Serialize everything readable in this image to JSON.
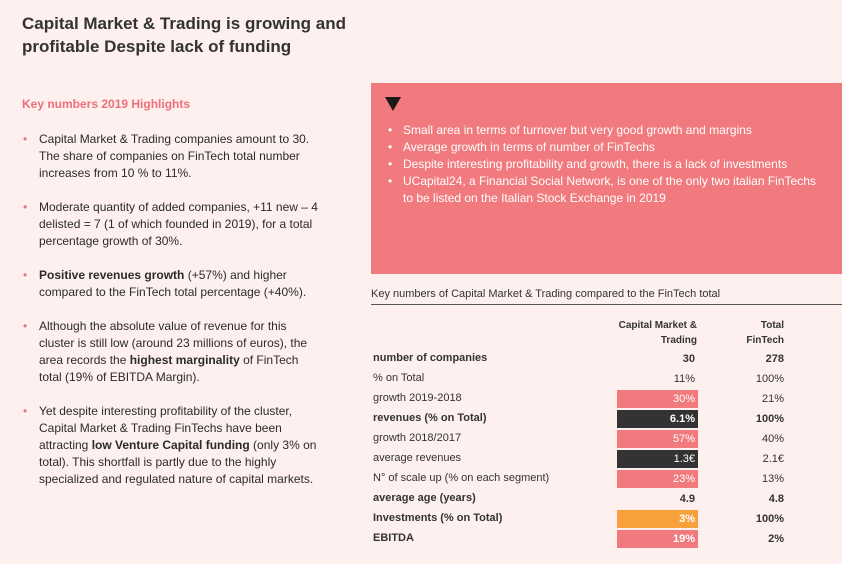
{
  "title": "Capital Market & Trading is growing and profitable Despite lack of funding",
  "highlights": {
    "heading": "Key numbers 2019 Highlights",
    "items": [
      {
        "parts": [
          {
            "t": "Capital Market & Trading companies amount to 30. The share of companies on FinTech total number increases from 10 % to 11%.",
            "b": false
          }
        ]
      },
      {
        "parts": [
          {
            "t": "Moderate quantity of added companies, +11 new – 4 delisted = 7 (1 of which founded in 2019), for a total percentage growth of 30%.",
            "b": false
          }
        ]
      },
      {
        "parts": [
          {
            "t": "Positive revenues growth",
            "b": true
          },
          {
            "t": " (+57%) and higher compared to the FinTech total percentage (+40%).",
            "b": false
          }
        ]
      },
      {
        "parts": [
          {
            "t": "Although the absolute value of revenue for this cluster is still low (around 23 millions of euros), the area records the ",
            "b": false
          },
          {
            "t": "highest marginality",
            "b": true
          },
          {
            "t": " of FinTech total (19% of EBITDA Margin).",
            "b": false
          }
        ]
      },
      {
        "parts": [
          {
            "t": "Yet despite interesting profitability of the cluster, Capital Market & Trading FinTechs have been attracting ",
            "b": false
          },
          {
            "t": "low Venture Capital funding",
            "b": true
          },
          {
            "t": " (only 3% on total). This shortfall is partly due to the highly specialized and regulated nature of capital markets.",
            "b": false
          }
        ]
      }
    ]
  },
  "callout": {
    "items": [
      "Small area in terms of turnover but very good growth and margins",
      "Average growth in terms of number of FinTechs",
      "Despite interesting profitability and growth, there is a lack of investments",
      "UCapital24, a Financial Social Network, is one of the only two italian FinTechs to be listed on the Italian Stock Exchange in 2019"
    ]
  },
  "table": {
    "title": "Key numbers of Capital Market & Trading compared to the FinTech total",
    "col_cmt": "Capital Market & Trading",
    "col_total": "Total FinTech",
    "rows": [
      {
        "label": "number of companies",
        "cmt": "30",
        "total": "278",
        "bold": true,
        "hl": ""
      },
      {
        "label": "% on Total",
        "cmt": "11%",
        "total": "100%",
        "bold": false,
        "hl": ""
      },
      {
        "label": "growth 2019-2018",
        "cmt": "30%",
        "total": "21%",
        "bold": false,
        "hl": "pink"
      },
      {
        "label": "revenues (% on Total)",
        "cmt": "6.1%",
        "total": "100%",
        "bold": true,
        "hl": "dark"
      },
      {
        "label": "growth 2018/2017",
        "cmt": "57%",
        "total": "40%",
        "bold": false,
        "hl": "pink"
      },
      {
        "label": "average revenues",
        "cmt": "1.3€",
        "total": "2.1€",
        "bold": false,
        "hl": "dark"
      },
      {
        "label": "N° of scale up (% on each segment)",
        "cmt": "23%",
        "total": "13%",
        "bold": false,
        "hl": "pink"
      },
      {
        "label": "average age (years)",
        "cmt": "4.9",
        "total": "4.8",
        "bold": true,
        "hl": ""
      },
      {
        "label": "Investments (% on Total)",
        "cmt": "3%",
        "total": "100%",
        "bold": true,
        "hl": "orange"
      },
      {
        "label": "EBITDA",
        "cmt": "19%",
        "total": "2%",
        "bold": true,
        "hl": "pink"
      }
    ]
  },
  "colors": {
    "accent": "#f07a7e",
    "dark": "#333333",
    "orange": "#f7a03c",
    "background": "#fdf0ee"
  },
  "icons": {
    "callout_marker": "triangle-down-icon",
    "bullet": "bullet-dot-icon"
  }
}
